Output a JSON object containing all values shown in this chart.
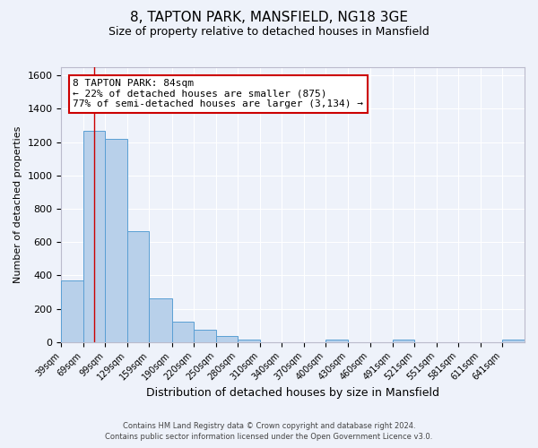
{
  "title": "8, TAPTON PARK, MANSFIELD, NG18 3GE",
  "subtitle": "Size of property relative to detached houses in Mansfield",
  "xlabel": "Distribution of detached houses by size in Mansfield",
  "ylabel": "Number of detached properties",
  "bar_labels": [
    "39sqm",
    "69sqm",
    "99sqm",
    "129sqm",
    "159sqm",
    "190sqm",
    "220sqm",
    "250sqm",
    "280sqm",
    "310sqm",
    "340sqm",
    "370sqm",
    "400sqm",
    "430sqm",
    "460sqm",
    "491sqm",
    "521sqm",
    "551sqm",
    "581sqm",
    "611sqm",
    "641sqm"
  ],
  "bar_values": [
    370,
    1270,
    1220,
    665,
    260,
    120,
    75,
    35,
    15,
    0,
    0,
    0,
    15,
    0,
    0,
    15,
    0,
    0,
    0,
    0,
    15
  ],
  "bar_color": "#b8d0ea",
  "bar_edge_color": "#5a9fd4",
  "ylim": [
    0,
    1650
  ],
  "yticks": [
    0,
    200,
    400,
    600,
    800,
    1000,
    1200,
    1400,
    1600
  ],
  "annotation_line1": "8 TAPTON PARK: 84sqm",
  "annotation_line2": "← 22% of detached houses are smaller (875)",
  "annotation_line3": "77% of semi-detached houses are larger (3,134) →",
  "annotation_box_color": "#ffffff",
  "annotation_box_edge_color": "#cc0000",
  "red_line_x": 84,
  "bin_edges": [
    39,
    69,
    99,
    129,
    159,
    190,
    220,
    250,
    280,
    310,
    340,
    370,
    400,
    430,
    460,
    491,
    521,
    551,
    581,
    611,
    641,
    671
  ],
  "footer_line1": "Contains HM Land Registry data © Crown copyright and database right 2024.",
  "footer_line2": "Contains public sector information licensed under the Open Government Licence v3.0.",
  "background_color": "#eef2fa",
  "grid_color": "#ffffff",
  "title_fontsize": 11,
  "subtitle_fontsize": 9,
  "ylabel_fontsize": 8,
  "xlabel_fontsize": 9
}
